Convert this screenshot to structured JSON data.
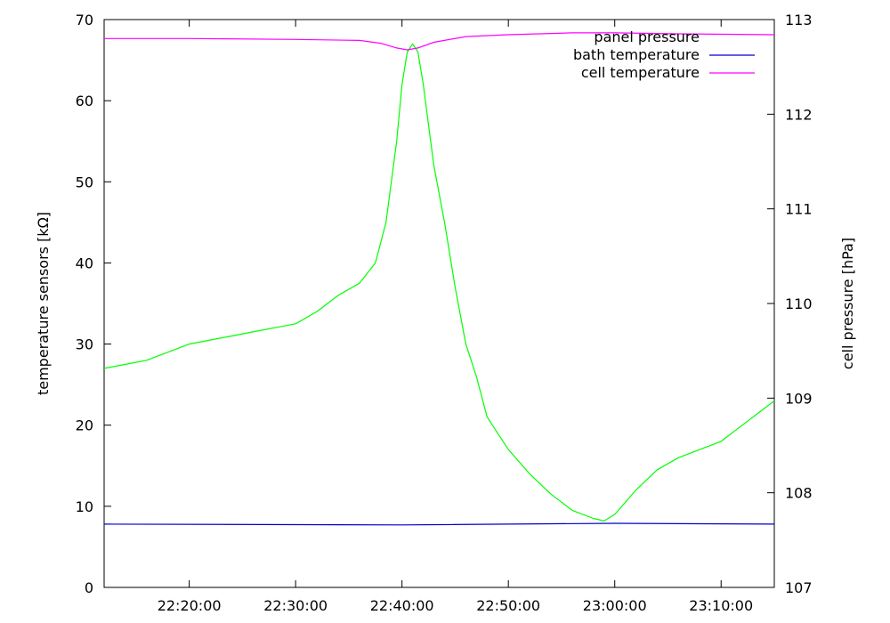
{
  "chart_data": {
    "type": "line",
    "title": "",
    "xlabel": "",
    "ylabel": "temperature sensors [kΩ]",
    "y2label": "cell pressure [hPa]",
    "x_range": [
      "22:12:00",
      "23:15:00"
    ],
    "ylim": [
      0,
      70
    ],
    "y2lim": [
      107,
      113
    ],
    "x_ticks": [
      "22:20:00",
      "22:30:00",
      "22:40:00",
      "22:50:00",
      "23:00:00",
      "23:10:00"
    ],
    "y_ticks": [
      "0",
      "10",
      "20",
      "30",
      "40",
      "50",
      "60",
      "70"
    ],
    "y2_ticks": [
      "107",
      "108",
      "109",
      "110",
      "111",
      "112",
      "113"
    ],
    "grid": false,
    "legend_position": "top-right",
    "legend": [
      {
        "label": "panel pressure",
        "color": "#00ff00"
      },
      {
        "label": "bath temperature",
        "color": "#0000cc"
      },
      {
        "label": "cell temperature",
        "color": "#ff00ff"
      }
    ],
    "series": [
      {
        "name": "panel pressure",
        "axis": "y",
        "color": "#00ff00",
        "x": [
          "22:12:00",
          "22:14:00",
          "22:16:00",
          "22:18:00",
          "22:20:00",
          "22:22:00",
          "22:24:00",
          "22:26:00",
          "22:28:00",
          "22:30:00",
          "22:32:00",
          "22:34:00",
          "22:36:00",
          "22:37:30",
          "22:38:30",
          "22:39:30",
          "22:40:00",
          "22:40:30",
          "22:41:00",
          "22:41:30",
          "22:42:00",
          "22:42:30",
          "22:43:00",
          "22:44:00",
          "22:45:00",
          "22:46:00",
          "22:47:00",
          "22:48:00",
          "22:50:00",
          "22:52:00",
          "22:54:00",
          "22:56:00",
          "22:58:00",
          "22:59:00",
          "23:00:00",
          "23:02:00",
          "23:04:00",
          "23:06:00",
          "23:08:00",
          "23:10:00",
          "23:12:00",
          "23:14:00",
          "23:15:00"
        ],
        "y": [
          27,
          27.5,
          28,
          29,
          30,
          30.5,
          31,
          31.5,
          32,
          32.5,
          34,
          36,
          37.5,
          40,
          45,
          55,
          62,
          66,
          67,
          66,
          62,
          57,
          52,
          45,
          37,
          30,
          26,
          21,
          17,
          14,
          11.5,
          9.5,
          8.5,
          8.2,
          9,
          12,
          14.5,
          16,
          17,
          18,
          20,
          22,
          23
        ]
      },
      {
        "name": "bath temperature",
        "axis": "y",
        "color": "#0000cc",
        "x": [
          "22:12:00",
          "22:40:00",
          "23:00:00",
          "23:15:00"
        ],
        "y": [
          7.8,
          7.7,
          7.9,
          7.8
        ]
      },
      {
        "name": "cell temperature",
        "axis": "y2",
        "color": "#ff00ff",
        "x": [
          "22:12:00",
          "22:20:00",
          "22:30:00",
          "22:36:00",
          "22:38:00",
          "22:39:30",
          "22:40:30",
          "22:41:30",
          "22:43:00",
          "22:46:00",
          "22:50:00",
          "22:56:00",
          "23:00:00",
          "23:06:00",
          "23:15:00"
        ],
        "y": [
          112.8,
          112.8,
          112.79,
          112.78,
          112.75,
          112.7,
          112.68,
          112.7,
          112.76,
          112.82,
          112.84,
          112.86,
          112.86,
          112.85,
          112.84
        ]
      }
    ]
  }
}
